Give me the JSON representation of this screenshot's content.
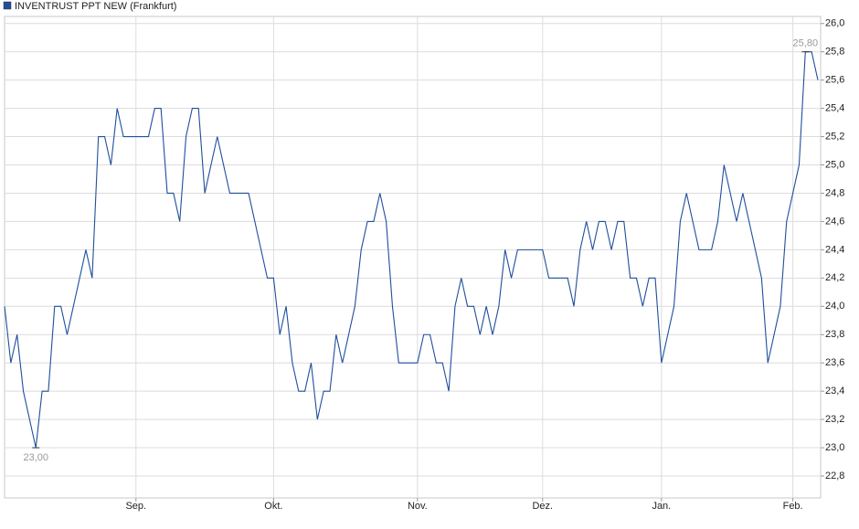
{
  "chart_data": {
    "type": "line",
    "categories": [
      null,
      null,
      null,
      null,
      null,
      null,
      null,
      null,
      null,
      null,
      null,
      null,
      null,
      null,
      null,
      null,
      null,
      null,
      null,
      null,
      null,
      "Sep.",
      null,
      null,
      null,
      null,
      null,
      null,
      null,
      null,
      null,
      null,
      null,
      null,
      null,
      null,
      null,
      null,
      null,
      null,
      null,
      null,
      null,
      "Okt.",
      null,
      null,
      null,
      null,
      null,
      null,
      null,
      null,
      null,
      null,
      null,
      null,
      null,
      null,
      null,
      null,
      null,
      null,
      null,
      null,
      null,
      null,
      "Nov.",
      null,
      null,
      null,
      null,
      null,
      null,
      null,
      null,
      null,
      null,
      null,
      null,
      null,
      null,
      null,
      null,
      null,
      null,
      null,
      "Dez.",
      null,
      null,
      null,
      null,
      null,
      null,
      null,
      null,
      null,
      null,
      null,
      null,
      null,
      null,
      null,
      null,
      null,
      null,
      "Jan.",
      null,
      null,
      null,
      null,
      null,
      null,
      null,
      null,
      null,
      null,
      null,
      null,
      null,
      null,
      null,
      null,
      null,
      null,
      null,
      null,
      "Feb.",
      null,
      null,
      null,
      null
    ],
    "series": [
      {
        "name": "INVENTRUST PPT NEW (Frankfurt)",
        "color": "#1f4f9c",
        "values": [
          24.0,
          23.6,
          23.8,
          23.4,
          23.2,
          23.0,
          23.4,
          23.4,
          24.0,
          24.0,
          23.8,
          24.0,
          24.2,
          24.4,
          24.2,
          25.2,
          25.2,
          25.0,
          25.4,
          25.2,
          25.2,
          25.2,
          25.2,
          25.2,
          25.4,
          25.4,
          24.8,
          24.8,
          24.6,
          25.2,
          25.4,
          25.4,
          24.8,
          25.0,
          25.2,
          25.0,
          24.8,
          24.8,
          24.8,
          24.8,
          24.6,
          24.4,
          24.2,
          24.2,
          23.8,
          24.0,
          23.6,
          23.4,
          23.4,
          23.6,
          23.2,
          23.4,
          23.4,
          23.8,
          23.6,
          23.8,
          24.0,
          24.4,
          24.6,
          24.6,
          24.8,
          24.6,
          24.0,
          23.6,
          23.6,
          23.6,
          23.6,
          23.8,
          23.8,
          23.6,
          23.6,
          23.4,
          24.0,
          24.2,
          24.0,
          24.0,
          23.8,
          24.0,
          23.8,
          24.0,
          24.4,
          24.2,
          24.4,
          24.4,
          24.4,
          24.4,
          24.4,
          24.2,
          24.2,
          24.2,
          24.2,
          24.0,
          24.4,
          24.6,
          24.4,
          24.6,
          24.6,
          24.4,
          24.6,
          24.6,
          24.2,
          24.2,
          24.0,
          24.2,
          24.2,
          23.6,
          23.8,
          24.0,
          24.6,
          24.8,
          24.6,
          24.4,
          24.4,
          24.4,
          24.6,
          25.0,
          24.8,
          24.6,
          24.8,
          24.6,
          24.4,
          24.2,
          23.6,
          23.8,
          24.0,
          24.6,
          24.8,
          25.0,
          25.8,
          25.8,
          25.6
        ],
        "value_labels": [
          null,
          null,
          null,
          null,
          null,
          "23,00",
          null,
          null,
          null,
          null,
          null,
          null,
          null,
          null,
          null,
          null,
          null,
          null,
          null,
          null,
          null,
          null,
          null,
          null,
          null,
          null,
          null,
          null,
          null,
          null,
          null,
          null,
          null,
          null,
          null,
          null,
          null,
          null,
          null,
          null,
          null,
          null,
          null,
          null,
          null,
          null,
          null,
          null,
          null,
          null,
          null,
          null,
          null,
          null,
          null,
          null,
          null,
          null,
          null,
          null,
          null,
          null,
          null,
          null,
          null,
          null,
          null,
          null,
          null,
          null,
          null,
          null,
          null,
          null,
          null,
          null,
          null,
          null,
          null,
          null,
          null,
          null,
          null,
          null,
          null,
          null,
          null,
          null,
          null,
          null,
          null,
          null,
          null,
          null,
          null,
          null,
          null,
          null,
          null,
          null,
          null,
          null,
          null,
          null,
          null,
          null,
          null,
          null,
          null,
          null,
          null,
          null,
          null,
          null,
          null,
          null,
          null,
          null,
          null,
          null,
          null,
          null,
          null,
          null,
          null,
          null,
          null,
          null,
          "25,80",
          null,
          null
        ]
      }
    ],
    "ylim": [
      22.645,
      26.05
    ],
    "yticks": [
      {
        "value": 22.8,
        "label": "22,8"
      },
      {
        "value": 23.0,
        "label": "23,0"
      },
      {
        "value": 23.2,
        "label": "23,2"
      },
      {
        "value": 23.4,
        "label": "23,4"
      },
      {
        "value": 23.6,
        "label": "23,6"
      },
      {
        "value": 23.8,
        "label": "23,8"
      },
      {
        "value": 24.0,
        "label": "24,0"
      },
      {
        "value": 24.2,
        "label": "24,2"
      },
      {
        "value": 24.4,
        "label": "24,4"
      },
      {
        "value": 24.6,
        "label": "24,6"
      },
      {
        "value": 24.8,
        "label": "24,8"
      },
      {
        "value": 25.0,
        "label": "25,0"
      },
      {
        "value": 25.2,
        "label": "25,2"
      },
      {
        "value": 25.4,
        "label": "25,4"
      },
      {
        "value": 25.6,
        "label": "25,6"
      },
      {
        "value": 25.8,
        "label": "25,8"
      },
      {
        "value": 26.0,
        "label": "26,0"
      }
    ],
    "grid": true
  }
}
